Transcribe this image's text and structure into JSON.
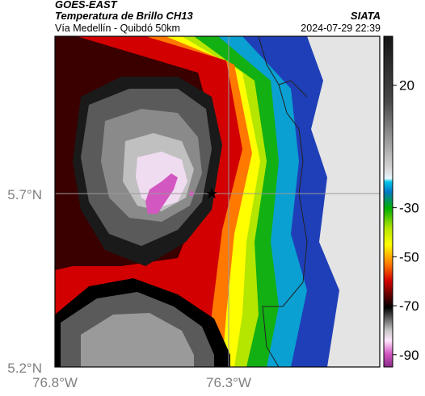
{
  "header": {
    "satellite": "GOES-EAST",
    "product": "Temperatura de Brillo CH13",
    "region": "Vía Medellín - Quibdó 50km",
    "organization": "SIATA",
    "datetime": "2024-07-29 22:39"
  },
  "map": {
    "lat_ticks": [
      {
        "label": "5.7°N",
        "value": 5.7
      },
      {
        "label": "5.2°N",
        "value": 5.2
      }
    ],
    "lon_ticks": [
      {
        "label": "76.8°W",
        "value": -76.8
      },
      {
        "label": "76.3°W",
        "value": -76.3
      }
    ],
    "marker_icon": "star-icon",
    "colors": {
      "cold_core": "#d257c0",
      "warm_ring": "#d20000",
      "background": "#e4e4e4"
    }
  },
  "colorbar": {
    "ticks": [
      {
        "label": "20",
        "value": 20
      },
      {
        "label": "-30",
        "value": -30
      },
      {
        "label": "-50",
        "value": -50
      },
      {
        "label": "-70",
        "value": -70
      },
      {
        "label": "-90",
        "value": -90
      }
    ],
    "range": [
      -95,
      40
    ]
  }
}
